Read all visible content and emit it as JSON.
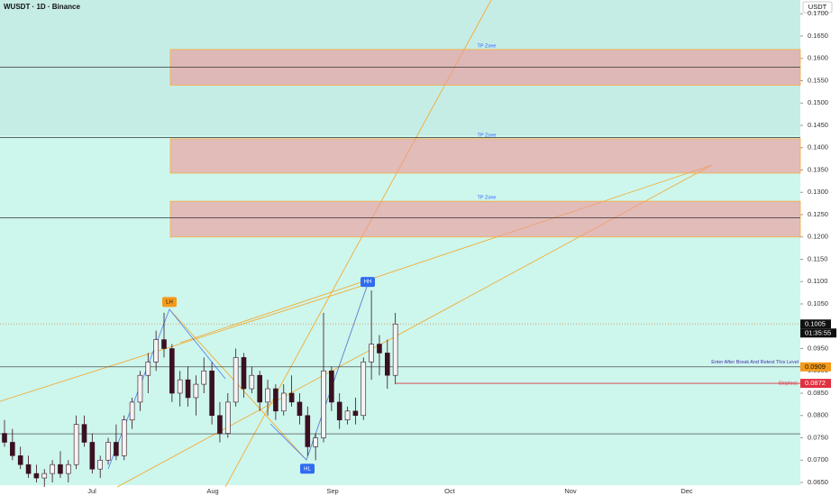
{
  "chart_data": {
    "type": "candlestick",
    "title": "WUSDT · 1D · Binance",
    "currency": "USDT",
    "open": [
      0.076,
      0.074,
      0.071,
      0.069,
      0.067,
      0.066,
      0.067,
      0.069,
      0.067,
      0.069,
      0.078,
      0.074,
      0.068,
      0.07,
      0.074,
      0.071,
      0.079,
      0.083,
      0.089,
      0.092,
      0.097,
      0.095,
      0.085,
      0.088,
      0.084,
      0.087,
      0.09,
      0.08,
      0.076,
      0.083,
      0.093,
      0.086,
      0.089,
      0.083,
      0.086,
      0.081,
      0.085,
      0.083,
      0.08,
      0.073,
      0.075,
      0.09,
      0.083,
      0.079,
      0.081,
      0.08,
      0.092,
      0.096,
      0.094,
      0.089
    ],
    "high": [
      0.079,
      0.077,
      0.073,
      0.071,
      0.069,
      0.068,
      0.07,
      0.072,
      0.07,
      0.08,
      0.08,
      0.076,
      0.071,
      0.075,
      0.078,
      0.08,
      0.084,
      0.09,
      0.094,
      0.099,
      0.103,
      0.096,
      0.09,
      0.091,
      0.089,
      0.093,
      0.092,
      0.083,
      0.085,
      0.095,
      0.094,
      0.091,
      0.09,
      0.088,
      0.087,
      0.087,
      0.089,
      0.085,
      0.082,
      0.076,
      0.103,
      0.091,
      0.085,
      0.082,
      0.084,
      0.093,
      0.108,
      0.098,
      0.097,
      0.103
    ],
    "low": [
      0.073,
      0.07,
      0.068,
      0.066,
      0.065,
      0.064,
      0.065,
      0.066,
      0.065,
      0.068,
      0.073,
      0.067,
      0.066,
      0.069,
      0.07,
      0.07,
      0.077,
      0.081,
      0.085,
      0.09,
      0.093,
      0.083,
      0.082,
      0.082,
      0.08,
      0.085,
      0.078,
      0.074,
      0.075,
      0.082,
      0.084,
      0.085,
      0.081,
      0.08,
      0.079,
      0.08,
      0.082,
      0.078,
      0.071,
      0.07,
      0.074,
      0.081,
      0.077,
      0.078,
      0.078,
      0.079,
      0.088,
      0.089,
      0.086,
      0.087
    ],
    "close": [
      0.074,
      0.071,
      0.069,
      0.067,
      0.066,
      0.067,
      0.069,
      0.067,
      0.069,
      0.078,
      0.074,
      0.068,
      0.07,
      0.074,
      0.071,
      0.079,
      0.083,
      0.089,
      0.092,
      0.097,
      0.095,
      0.085,
      0.088,
      0.084,
      0.087,
      0.09,
      0.08,
      0.076,
      0.083,
      0.093,
      0.086,
      0.089,
      0.083,
      0.086,
      0.081,
      0.085,
      0.083,
      0.08,
      0.073,
      0.075,
      0.09,
      0.083,
      0.079,
      0.081,
      0.08,
      0.092,
      0.096,
      0.094,
      0.089,
      0.1005
    ],
    "ylim": [
      0.0625,
      0.1702
    ],
    "yticks": [
      {
        "value": 0.065,
        "label": "0.0650"
      },
      {
        "value": 0.07,
        "label": "0.0700"
      },
      {
        "value": 0.075,
        "label": "0.0750"
      },
      {
        "value": 0.08,
        "label": "0.0800"
      },
      {
        "value": 0.085,
        "label": "0.0850"
      },
      {
        "value": 0.09,
        "label": "0.0900"
      },
      {
        "value": 0.095,
        "label": "0.0950"
      },
      {
        "value": 0.1,
        "label": "0.1000"
      },
      {
        "value": 0.105,
        "label": "0.1050"
      },
      {
        "value": 0.11,
        "label": "0.1100"
      },
      {
        "value": 0.115,
        "label": "0.1150"
      },
      {
        "value": 0.12,
        "label": "0.1200"
      },
      {
        "value": 0.125,
        "label": "0.1250"
      },
      {
        "value": 0.13,
        "label": "0.1300"
      },
      {
        "value": 0.135,
        "label": "0.1350"
      },
      {
        "value": 0.14,
        "label": "0.1400"
      },
      {
        "value": 0.145,
        "label": "0.1450"
      },
      {
        "value": 0.15,
        "label": "0.1500"
      },
      {
        "value": 0.155,
        "label": "0.1550"
      },
      {
        "value": 0.16,
        "label": "0.1600"
      },
      {
        "value": 0.165,
        "label": "0.1650"
      },
      {
        "value": 0.17,
        "label": "0.1700"
      }
    ],
    "x_labels": [
      "Jul",
      "Aug",
      "Sep",
      "Oct",
      "Nov",
      "Dec"
    ],
    "zones": [
      {
        "label": "TP Zone",
        "top": 0.162,
        "bottom": 0.154
      },
      {
        "label": "TP Zone",
        "top": 0.142,
        "bottom": 0.1343
      },
      {
        "label": "TP Zone",
        "top": 0.128,
        "bottom": 0.12
      }
    ],
    "levels": [
      0.158,
      0.1423,
      0.1243,
      0.0909,
      0.0759
    ],
    "pivots": [
      {
        "label": "LH",
        "value": 0.1035
      },
      {
        "label": "HL",
        "value": 0.07
      },
      {
        "label": "HH",
        "value": 0.108
      }
    ],
    "last_price": 0.1005,
    "countdown": "01:35:55",
    "entry": {
      "value": 0.0909,
      "note": "Enter After Break And Retest This Level"
    },
    "stoploss": {
      "value": 0.0872,
      "note": "Stoploss"
    }
  }
}
